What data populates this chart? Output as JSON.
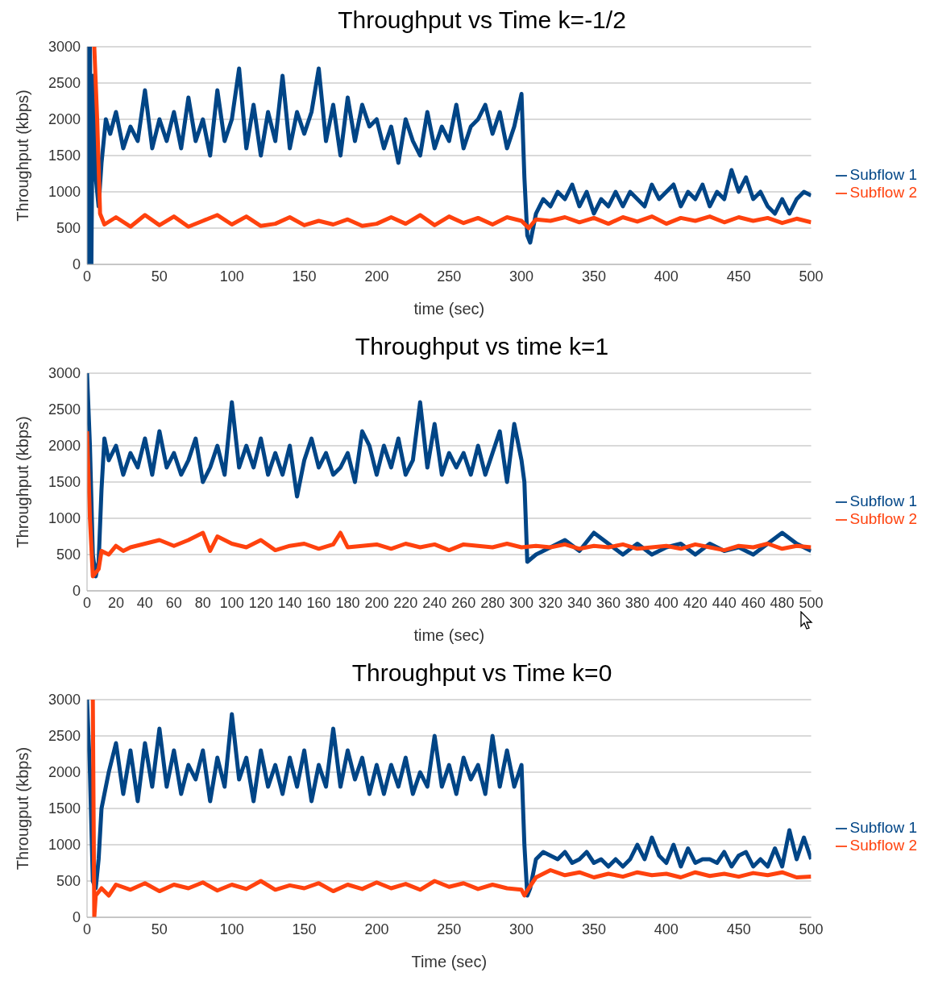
{
  "chart_data": [
    {
      "type": "line",
      "title": "Throughput vs Time k=-1/2",
      "xlabel": "time (sec)",
      "ylabel": "Throughput (kbps)",
      "xlim": [
        0,
        500
      ],
      "xticks": [
        0,
        50,
        100,
        150,
        200,
        250,
        300,
        350,
        400,
        450,
        500
      ],
      "ylim": [
        0,
        3000
      ],
      "yticks": [
        0,
        500,
        1000,
        1500,
        2000,
        2500,
        3000
      ],
      "grid": "y",
      "legend": "right",
      "marker": "none",
      "line_style": "solid",
      "series": [
        {
          "name": "Subflow 1",
          "color": "#004586",
          "x": [
            0,
            1,
            2,
            3,
            4,
            6,
            8,
            10,
            13,
            16,
            20,
            25,
            30,
            35,
            40,
            45,
            50,
            55,
            60,
            65,
            70,
            75,
            80,
            85,
            90,
            95,
            100,
            105,
            110,
            115,
            120,
            125,
            130,
            135,
            140,
            145,
            150,
            155,
            160,
            165,
            170,
            175,
            180,
            185,
            190,
            195,
            200,
            205,
            210,
            215,
            220,
            225,
            230,
            235,
            240,
            245,
            250,
            255,
            260,
            265,
            270,
            275,
            280,
            285,
            290,
            295,
            300,
            302,
            304,
            306,
            310,
            315,
            320,
            325,
            330,
            335,
            340,
            345,
            350,
            355,
            360,
            365,
            370,
            375,
            380,
            385,
            390,
            395,
            400,
            405,
            410,
            415,
            420,
            425,
            430,
            435,
            440,
            445,
            450,
            455,
            460,
            465,
            470,
            475,
            480,
            485,
            490,
            495,
            500
          ],
          "values": [
            3000,
            0,
            3000,
            0,
            2600,
            1200,
            800,
            1400,
            2000,
            1800,
            2100,
            1600,
            1900,
            1700,
            2400,
            1600,
            2000,
            1700,
            2100,
            1600,
            2300,
            1700,
            2000,
            1500,
            2400,
            1700,
            2000,
            2700,
            1600,
            2200,
            1500,
            2100,
            1700,
            2600,
            1600,
            2100,
            1800,
            2100,
            2700,
            1700,
            2200,
            1500,
            2300,
            1700,
            2200,
            1900,
            2000,
            1600,
            1900,
            1400,
            2000,
            1700,
            1500,
            2100,
            1600,
            1900,
            1700,
            2200,
            1600,
            1900,
            2000,
            2200,
            1800,
            2100,
            1600,
            1900,
            2350,
            1200,
            400,
            300,
            700,
            900,
            800,
            1000,
            900,
            1100,
            800,
            1000,
            700,
            900,
            800,
            1000,
            800,
            1000,
            900,
            800,
            1100,
            900,
            1000,
            1100,
            800,
            1000,
            900,
            1100,
            800,
            1000,
            900,
            1300,
            1000,
            1200,
            900,
            1000,
            800,
            700,
            900,
            700,
            900,
            1000,
            950
          ]
        },
        {
          "name": "Subflow 2",
          "color": "#ff420e",
          "x": [
            5,
            7,
            9,
            12,
            20,
            30,
            40,
            50,
            60,
            70,
            80,
            90,
            100,
            110,
            120,
            130,
            140,
            150,
            160,
            170,
            180,
            190,
            200,
            210,
            220,
            230,
            240,
            250,
            260,
            270,
            280,
            290,
            300,
            305,
            310,
            320,
            330,
            340,
            350,
            360,
            370,
            380,
            390,
            400,
            410,
            420,
            430,
            440,
            450,
            460,
            470,
            480,
            490,
            500
          ],
          "values": [
            3000,
            2000,
            700,
            550,
            650,
            520,
            680,
            540,
            660,
            520,
            600,
            680,
            550,
            660,
            530,
            560,
            650,
            540,
            600,
            550,
            620,
            530,
            560,
            650,
            560,
            680,
            540,
            660,
            570,
            640,
            550,
            650,
            600,
            500,
            620,
            600,
            650,
            580,
            640,
            560,
            650,
            590,
            660,
            560,
            640,
            600,
            660,
            580,
            650,
            600,
            640,
            570,
            630,
            580
          ]
        }
      ]
    },
    {
      "type": "line",
      "title": "Throughput vs time k=1",
      "xlabel": "time (sec)",
      "ylabel": "Throughput (kbps)",
      "xlim": [
        0,
        500
      ],
      "xticks": [
        0,
        20,
        40,
        60,
        80,
        100,
        120,
        140,
        160,
        180,
        200,
        220,
        240,
        260,
        280,
        300,
        320,
        340,
        360,
        380,
        400,
        420,
        440,
        460,
        480,
        500
      ],
      "ylim": [
        0,
        3000
      ],
      "yticks": [
        0,
        500,
        1000,
        1500,
        2000,
        2500,
        3000
      ],
      "grid": "y",
      "legend": "right",
      "marker": "none",
      "line_style": "solid",
      "series": [
        {
          "name": "Subflow 1",
          "color": "#004586",
          "x": [
            0,
            2,
            4,
            6,
            8,
            10,
            12,
            15,
            20,
            25,
            30,
            35,
            40,
            45,
            50,
            55,
            60,
            65,
            70,
            75,
            80,
            85,
            90,
            95,
            100,
            105,
            110,
            115,
            120,
            125,
            130,
            135,
            140,
            145,
            150,
            155,
            160,
            165,
            170,
            175,
            180,
            185,
            190,
            195,
            200,
            205,
            210,
            215,
            220,
            225,
            230,
            235,
            240,
            245,
            250,
            255,
            260,
            265,
            270,
            275,
            280,
            285,
            290,
            295,
            300,
            302,
            304,
            310,
            320,
            330,
            340,
            350,
            360,
            370,
            380,
            390,
            400,
            410,
            420,
            430,
            440,
            450,
            460,
            470,
            480,
            490,
            500
          ],
          "values": [
            3000,
            2000,
            500,
            200,
            400,
            1400,
            2100,
            1800,
            2000,
            1600,
            1900,
            1700,
            2100,
            1600,
            2200,
            1700,
            1900,
            1600,
            1800,
            2100,
            1500,
            1700,
            2000,
            1600,
            2600,
            1700,
            2000,
            1700,
            2100,
            1600,
            1900,
            1600,
            2000,
            1300,
            1800,
            2100,
            1700,
            1900,
            1600,
            1700,
            1900,
            1500,
            2200,
            2000,
            1600,
            2000,
            1700,
            2100,
            1600,
            1800,
            2600,
            1700,
            2300,
            1600,
            1900,
            1700,
            1900,
            1600,
            2000,
            1600,
            1900,
            2200,
            1500,
            2300,
            1800,
            1500,
            400,
            500,
            600,
            700,
            550,
            800,
            650,
            500,
            650,
            500,
            600,
            650,
            500,
            650,
            550,
            600,
            500,
            650,
            800,
            650,
            550
          ]
        },
        {
          "name": "Subflow 2",
          "color": "#ff420e",
          "x": [
            0,
            2,
            4,
            6,
            8,
            10,
            15,
            20,
            25,
            30,
            40,
            50,
            60,
            70,
            80,
            85,
            90,
            100,
            110,
            120,
            130,
            140,
            150,
            160,
            170,
            175,
            180,
            190,
            200,
            210,
            220,
            230,
            240,
            250,
            260,
            270,
            280,
            290,
            300,
            310,
            320,
            330,
            340,
            350,
            360,
            370,
            380,
            390,
            400,
            410,
            420,
            430,
            440,
            450,
            460,
            470,
            480,
            490,
            500
          ],
          "values": [
            2200,
            1000,
            200,
            250,
            300,
            550,
            500,
            620,
            550,
            600,
            650,
            700,
            620,
            700,
            800,
            550,
            750,
            650,
            600,
            700,
            560,
            620,
            650,
            580,
            640,
            800,
            600,
            620,
            640,
            580,
            650,
            600,
            640,
            560,
            640,
            620,
            600,
            650,
            600,
            620,
            600,
            640,
            580,
            620,
            600,
            640,
            580,
            600,
            620,
            580,
            640,
            600,
            560,
            620,
            600,
            650,
            580,
            620,
            600
          ]
        }
      ]
    },
    {
      "type": "line",
      "title": "Throughput vs Time k=0",
      "xlabel": "Time (sec)",
      "ylabel": "Througput (kbps)",
      "xlim": [
        0,
        500
      ],
      "xticks": [
        0,
        50,
        100,
        150,
        200,
        250,
        300,
        350,
        400,
        450,
        500
      ],
      "ylim": [
        0,
        3000
      ],
      "yticks": [
        0,
        500,
        1000,
        1500,
        2000,
        2500,
        3000
      ],
      "grid": "y",
      "legend": "right",
      "marker": "none",
      "line_style": "solid",
      "series": [
        {
          "name": "Subflow 1",
          "color": "#004586",
          "x": [
            0,
            2,
            4,
            6,
            8,
            10,
            15,
            20,
            25,
            30,
            35,
            40,
            45,
            50,
            55,
            60,
            65,
            70,
            75,
            80,
            85,
            90,
            95,
            100,
            105,
            110,
            115,
            120,
            125,
            130,
            135,
            140,
            145,
            150,
            155,
            160,
            165,
            170,
            175,
            180,
            185,
            190,
            195,
            200,
            205,
            210,
            215,
            220,
            225,
            230,
            235,
            240,
            245,
            250,
            255,
            260,
            265,
            270,
            275,
            280,
            285,
            290,
            295,
            300,
            302,
            304,
            306,
            310,
            315,
            320,
            325,
            330,
            335,
            340,
            345,
            350,
            355,
            360,
            365,
            370,
            375,
            380,
            385,
            390,
            395,
            400,
            405,
            410,
            415,
            420,
            425,
            430,
            435,
            440,
            445,
            450,
            455,
            460,
            465,
            470,
            475,
            480,
            485,
            490,
            495,
            500
          ],
          "values": [
            3000,
            2000,
            500,
            400,
            800,
            1500,
            2000,
            2400,
            1700,
            2300,
            1600,
            2400,
            1800,
            2600,
            1800,
            2300,
            1700,
            2100,
            1900,
            2300,
            1600,
            2200,
            1800,
            2800,
            1900,
            2200,
            1600,
            2300,
            1800,
            2100,
            1700,
            2200,
            1800,
            2300,
            1600,
            2100,
            1800,
            2600,
            1800,
            2300,
            1900,
            2200,
            1700,
            2100,
            1700,
            2100,
            1800,
            2200,
            1700,
            2000,
            1800,
            2500,
            1800,
            2100,
            1700,
            2200,
            1900,
            2100,
            1700,
            2500,
            1800,
            2300,
            1800,
            2100,
            1000,
            300,
            400,
            800,
            900,
            850,
            800,
            900,
            750,
            800,
            900,
            750,
            800,
            700,
            800,
            700,
            800,
            1000,
            800,
            1100,
            850,
            750,
            1000,
            700,
            950,
            750,
            800,
            800,
            750,
            900,
            700,
            850,
            900,
            700,
            800,
            700,
            950,
            700,
            1200,
            800,
            1100,
            800
          ]
        },
        {
          "name": "Subflow 2",
          "color": "#ff420e",
          "x": [
            4,
            5,
            6,
            8,
            10,
            15,
            20,
            30,
            40,
            50,
            60,
            70,
            80,
            90,
            100,
            110,
            120,
            130,
            140,
            150,
            160,
            170,
            180,
            190,
            200,
            210,
            220,
            230,
            240,
            250,
            260,
            270,
            280,
            290,
            300,
            302,
            305,
            310,
            320,
            330,
            340,
            350,
            360,
            370,
            380,
            390,
            400,
            410,
            420,
            430,
            440,
            450,
            460,
            470,
            480,
            490,
            500
          ],
          "values": [
            3000,
            0,
            300,
            350,
            400,
            300,
            450,
            380,
            470,
            360,
            450,
            400,
            480,
            370,
            450,
            390,
            500,
            380,
            440,
            400,
            470,
            360,
            450,
            390,
            480,
            400,
            460,
            380,
            500,
            420,
            470,
            390,
            450,
            400,
            380,
            300,
            400,
            550,
            650,
            580,
            620,
            550,
            600,
            560,
            620,
            580,
            600,
            550,
            620,
            570,
            600,
            560,
            610,
            580,
            620,
            550,
            560
          ]
        }
      ]
    }
  ]
}
